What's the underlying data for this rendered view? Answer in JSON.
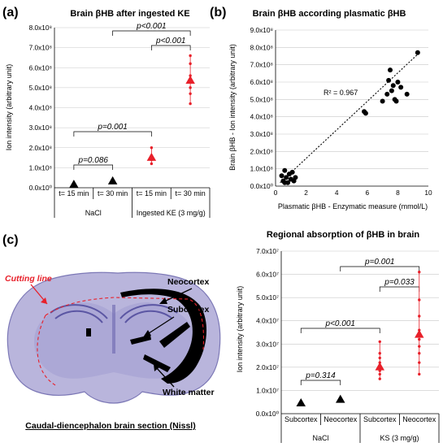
{
  "panels": {
    "a": "(a)",
    "b": "(b)",
    "c": "(c)"
  },
  "colors": {
    "red": "#e8202a",
    "black": "#000000",
    "tissue": "#8a86c0",
    "tissue_light": "#c9c6e6"
  },
  "chart_data": [
    {
      "id": "a",
      "type": "scatter",
      "title": "Brain βHB after ingested KE",
      "ylabel": "Ion intensity (arbitrary unit)",
      "ylim": [
        0,
        800000000.0
      ],
      "y_ticks": [
        "0.0x10⁰",
        "1.0x10⁸",
        "2.0x10⁸",
        "3.0x10⁸",
        "4.0x10⁸",
        "5.0x10⁸",
        "6.0x10⁸",
        "7.0x10⁸",
        "8.0x10⁸"
      ],
      "categories": [
        "t= 15 min",
        "t= 30 min",
        "t= 15 min",
        "t= 30 min"
      ],
      "groups": [
        {
          "label": "NaCl",
          "span": [
            0,
            1
          ]
        },
        {
          "label": "Ingested KE (3 mg/g)",
          "span": [
            2,
            3
          ]
        }
      ],
      "series": [
        {
          "values": [
            15000000.0,
            32000000.0,
            150000000.0,
            535000000.0
          ],
          "points": [
            [],
            [],
            [
              120000000.0,
              140000000.0,
              160000000.0,
              200000000.0
            ],
            [
              420000000.0,
              470000000.0,
              500000000.0,
              530000000.0,
              560000000.0,
              620000000.0,
              660000000.0
            ]
          ]
        }
      ],
      "comparisons": [
        {
          "between": [
            0,
            1
          ],
          "label": "p=0.086"
        },
        {
          "between": [
            0,
            2
          ],
          "label": "p=0.001"
        },
        {
          "between": [
            2,
            3
          ],
          "label": "p<0.001"
        },
        {
          "between": [
            1,
            3
          ],
          "label": "p<0.001"
        }
      ]
    },
    {
      "id": "b",
      "type": "scatter",
      "title": "Brain βHB according plasmatic βHB",
      "xlabel": "Plasmatic βHB - Enzymatic measure (mmol/L)",
      "ylabel": "Brain βHB - Ion intensity (arbitrary unit)",
      "xlim": [
        0,
        10
      ],
      "ylim": [
        0,
        900000000.0
      ],
      "x_ticks": [
        "0",
        "2",
        "4",
        "6",
        "8",
        "10"
      ],
      "y_ticks": [
        "0.0x10⁰",
        "1.0x10⁸",
        "2.0x10⁸",
        "3.0x10⁸",
        "4.0x10⁸",
        "5.0x10⁸",
        "6.0x10⁸",
        "7.0x10⁸",
        "8.0x10⁸",
        "9.0x10⁸"
      ],
      "annotation": "R² = 0.967",
      "trendline": {
        "x0": 0.3,
        "y0": 20000000.0,
        "x1": 9.3,
        "y1": 760000000.0
      },
      "points": [
        [
          0.4,
          60000000.0
        ],
        [
          0.5,
          30000000.0
        ],
        [
          0.6,
          90000000.0
        ],
        [
          0.7,
          50000000.0
        ],
        [
          0.8,
          20000000.0
        ],
        [
          0.9,
          70000000.0
        ],
        [
          1.0,
          40000000.0
        ],
        [
          1.1,
          80000000.0
        ],
        [
          1.2,
          30000000.0
        ],
        [
          0.6,
          20000000.0
        ],
        [
          1.3,
          50000000.0
        ],
        [
          5.8,
          430000000.0
        ],
        [
          5.9,
          420000000.0
        ],
        [
          7.0,
          490000000.0
        ],
        [
          7.3,
          530000000.0
        ],
        [
          7.4,
          610000000.0
        ],
        [
          7.5,
          670000000.0
        ],
        [
          7.6,
          550000000.0
        ],
        [
          7.7,
          580000000.0
        ],
        [
          7.8,
          500000000.0
        ],
        [
          7.9,
          490000000.0
        ],
        [
          8.0,
          600000000.0
        ],
        [
          8.2,
          570000000.0
        ],
        [
          8.6,
          530000000.0
        ],
        [
          9.3,
          770000000.0
        ]
      ]
    },
    {
      "id": "c",
      "type": "scatter",
      "title": "Regional absorption of βHB in brain",
      "ylabel": "Ion intensity (arbitrary unit)",
      "ylim": [
        0,
        70000000.0
      ],
      "y_ticks": [
        "0.0x10⁰",
        "1.0x10⁷",
        "2.0x10⁷",
        "3.0x10⁷",
        "4.0x10⁷",
        "5.0x10⁷",
        "6.0x10⁷",
        "7.0x10⁷"
      ],
      "categories": [
        "Subcortex",
        "Neocortex",
        "Subcortex",
        "Neocortex"
      ],
      "groups": [
        {
          "label": "NaCl",
          "span": [
            0,
            1
          ]
        },
        {
          "label": "KS (3 mg/g)",
          "span": [
            2,
            3
          ]
        }
      ],
      "series": [
        {
          "values": [
            4500000.0,
            6000000.0,
            20000000.0,
            34000000.0
          ],
          "points": [
            [],
            [],
            [
              15000000.0,
              17000000.0,
              18500000.0,
              20000000.0,
              22000000.0,
              24000000.0,
              26000000.0,
              31000000.0
            ],
            [
              17000000.0,
              22000000.0,
              26000000.0,
              29000000.0,
              32000000.0,
              36000000.0,
              42000000.0,
              49000000.0,
              61000000.0
            ]
          ]
        }
      ],
      "comparisons": [
        {
          "between": [
            0,
            1
          ],
          "label": "p=0.314"
        },
        {
          "between": [
            0,
            2
          ],
          "label": "p<0.001"
        },
        {
          "between": [
            2,
            3
          ],
          "label": "p=0.033"
        },
        {
          "between": [
            1,
            3
          ],
          "label": "p=0.001"
        }
      ]
    }
  ],
  "brain": {
    "cutting_line": "Cutting line",
    "neocortex": "Neocortex",
    "subcortex": "Subcortex",
    "white_matter": "White matter",
    "caption": "Caudal-diencephalon brain section (Nissl)"
  }
}
